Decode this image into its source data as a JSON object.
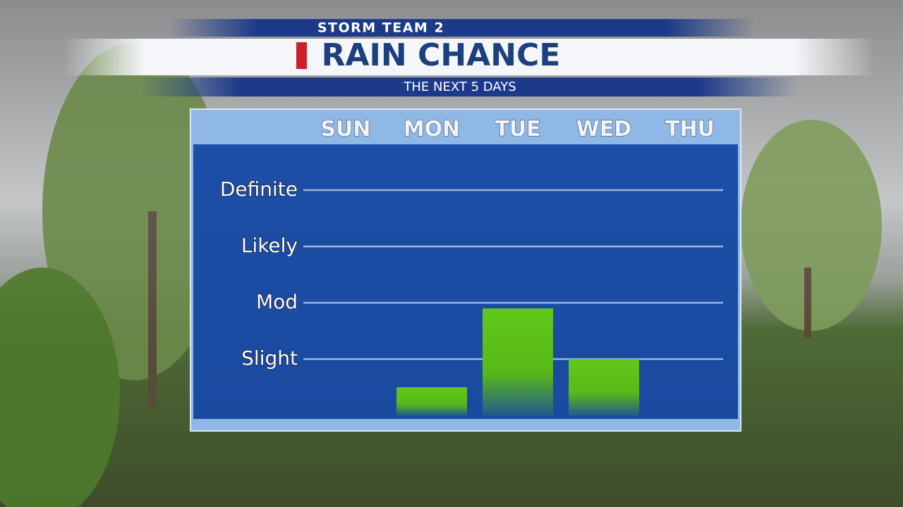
{
  "chart_data": {
    "type": "bar",
    "brand": "STORM TEAM 2",
    "title": "RAIN CHANCE",
    "subtitle": "THE NEXT 5 DAYS",
    "categories": [
      "SUN",
      "MON",
      "TUE",
      "WED",
      "THU"
    ],
    "values": [
      0,
      0.5,
      1.9,
      1.0,
      0
    ],
    "color": "#5ec316",
    "ylim": [
      0,
      4.8
    ],
    "yticks": [
      {
        "value": 1,
        "label": "Slight"
      },
      {
        "value": 2,
        "label": "Mod"
      },
      {
        "value": 3,
        "label": "Likely"
      },
      {
        "value": 4,
        "label": "Definite"
      }
    ],
    "grid": true
  }
}
